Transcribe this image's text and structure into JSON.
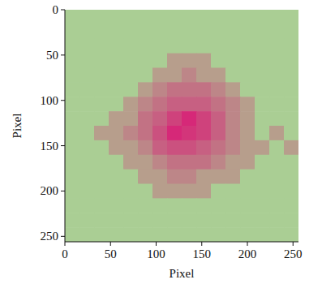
{
  "chart_data": {
    "type": "heatmap",
    "xlabel": "Pixel",
    "ylabel": "Pixel",
    "xlim": [
      0,
      256
    ],
    "ylim": [
      256,
      0
    ],
    "xticks": [
      0,
      50,
      100,
      150,
      200,
      250
    ],
    "yticks": [
      0,
      50,
      100,
      150,
      200,
      250
    ],
    "x": [
      0,
      16,
      32,
      48,
      64,
      80,
      96,
      112,
      128,
      144,
      160,
      176,
      192,
      208,
      224,
      240
    ],
    "y": [
      0,
      16,
      32,
      48,
      64,
      80,
      96,
      112,
      128,
      144,
      160,
      176,
      192,
      208,
      224,
      240
    ],
    "cells": [
      [
        0,
        0,
        0,
        0,
        0,
        0,
        0,
        0,
        0,
        0,
        0,
        0,
        0,
        0,
        0,
        0
      ],
      [
        0,
        0,
        0,
        0,
        0,
        0,
        0,
        0,
        0,
        0,
        0,
        0,
        0,
        0,
        0,
        0
      ],
      [
        0,
        0,
        0,
        0,
        0,
        0,
        0,
        0,
        0,
        0,
        0,
        0,
        0,
        0,
        0,
        0
      ],
      [
        0,
        0,
        0,
        0,
        0,
        0,
        0,
        1,
        1,
        1,
        0,
        0,
        0,
        0,
        0,
        0
      ],
      [
        0,
        0,
        0,
        0,
        0,
        0,
        1,
        1,
        2,
        1,
        1,
        0,
        0,
        0,
        0,
        0
      ],
      [
        0,
        0,
        0,
        0,
        0,
        1,
        2,
        3,
        3,
        3,
        2,
        1,
        0,
        0,
        0,
        0
      ],
      [
        0,
        0,
        0,
        0,
        1,
        2,
        3,
        4,
        4,
        4,
        3,
        2,
        1,
        0,
        0,
        0
      ],
      [
        0,
        0,
        0,
        1,
        1,
        3,
        4,
        6,
        8,
        6,
        4,
        2,
        1,
        0,
        0,
        0
      ],
      [
        0,
        0,
        1,
        1,
        2,
        3,
        5,
        8,
        7,
        6,
        4,
        2,
        1,
        0,
        1,
        0
      ],
      [
        0,
        0,
        0,
        1,
        1,
        2,
        4,
        5,
        5,
        4,
        3,
        2,
        1,
        1,
        0,
        1
      ],
      [
        0,
        0,
        0,
        0,
        1,
        1,
        2,
        3,
        3,
        3,
        2,
        1,
        1,
        0,
        0,
        0
      ],
      [
        0,
        0,
        0,
        0,
        0,
        1,
        1,
        2,
        2,
        1,
        1,
        1,
        0,
        0,
        0,
        0
      ],
      [
        0,
        0,
        0,
        0,
        0,
        0,
        1,
        1,
        1,
        1,
        0,
        0,
        0,
        0,
        0,
        0
      ],
      [
        0,
        0,
        0,
        0,
        0,
        0,
        0,
        0,
        0,
        0,
        0,
        0,
        0,
        0,
        0,
        0
      ],
      [
        0,
        0,
        0,
        0,
        0,
        0,
        0,
        0,
        0,
        0,
        0,
        0,
        0,
        0,
        0,
        0
      ],
      [
        0,
        0,
        0,
        0,
        0,
        0,
        0,
        0,
        0,
        0,
        0,
        0,
        0,
        0,
        0,
        0
      ]
    ]
  }
}
